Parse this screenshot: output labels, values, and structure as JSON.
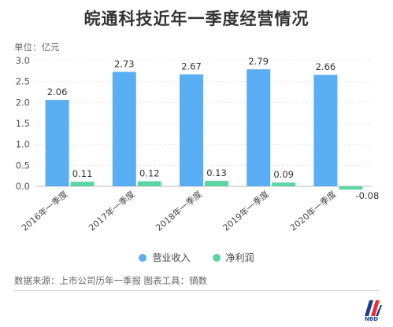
{
  "chart_data": {
    "type": "bar",
    "title": "皖通科技近年一季度经营情况",
    "unit": "单位：亿元",
    "categories": [
      "2016年一季度",
      "2017年一季度",
      "2018年一季度",
      "2019年一季度",
      "2020年一季度"
    ],
    "series": [
      {
        "name": "营业收入",
        "values": [
          2.06,
          2.73,
          2.67,
          2.79,
          2.66
        ],
        "color": "#5aaef4"
      },
      {
        "name": "净利润",
        "values": [
          0.11,
          0.12,
          0.13,
          0.09,
          -0.08
        ],
        "color": "#5ad6a4"
      }
    ],
    "ylim": [
      -0.1,
      3.0
    ],
    "yticks": [
      "0.0",
      "0.5",
      "1.0",
      "1.5",
      "2.0",
      "2.5",
      "3.0"
    ],
    "value_labels": [
      [
        "2.06",
        "2.73",
        "2.67",
        "2.79",
        "2.66"
      ],
      [
        "0.11",
        "0.12",
        "0.13",
        "0.09",
        "-0.08"
      ]
    ],
    "grid": true,
    "legend_position": "bottom-center"
  },
  "footer": {
    "source": "数据来源：上市公司历年一季报 图表工具：镝数",
    "logo_text": "NBD"
  }
}
